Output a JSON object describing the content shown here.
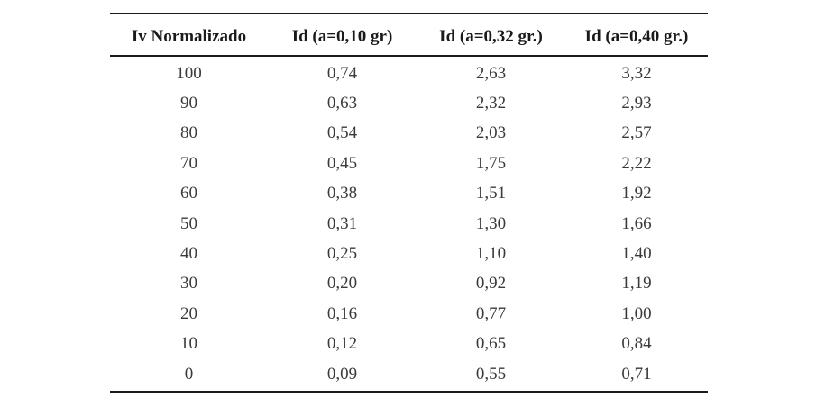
{
  "table": {
    "headers": [
      "Iv Normalizado",
      "Id (a=0,10 gr)",
      "Id (a=0,32 gr.)",
      "Id (a=0,40 gr.)"
    ],
    "rows": [
      [
        "100",
        "0,74",
        "2,63",
        "3,32"
      ],
      [
        "90",
        "0,63",
        "2,32",
        "2,93"
      ],
      [
        "80",
        "0,54",
        "2,03",
        "2,57"
      ],
      [
        "70",
        "0,45",
        "1,75",
        "2,22"
      ],
      [
        "60",
        "0,38",
        "1,51",
        "1,92"
      ],
      [
        "50",
        "0,31",
        "1,30",
        "1,66"
      ],
      [
        "40",
        "0,25",
        "1,10",
        "1,40"
      ],
      [
        "30",
        "0,20",
        "0,92",
        "1,19"
      ],
      [
        "20",
        "0,16",
        "0,77",
        "1,00"
      ],
      [
        "10",
        "0,12",
        "0,65",
        "0,84"
      ],
      [
        "0",
        "0,09",
        "0,55",
        "0,71"
      ]
    ]
  },
  "chart_data": {
    "type": "table",
    "columns": [
      "Iv Normalizado",
      "Id (a=0,10 gr)",
      "Id (a=0,32 gr.)",
      "Id (a=0,40 gr.)"
    ],
    "x": [
      100,
      90,
      80,
      70,
      60,
      50,
      40,
      30,
      20,
      10,
      0
    ],
    "series": [
      {
        "name": "Id (a=0,10 gr)",
        "values": [
          0.74,
          0.63,
          0.54,
          0.45,
          0.38,
          0.31,
          0.25,
          0.2,
          0.16,
          0.12,
          0.09
        ]
      },
      {
        "name": "Id (a=0,32 gr.)",
        "values": [
          2.63,
          2.32,
          2.03,
          1.75,
          1.51,
          1.3,
          1.1,
          0.92,
          0.77,
          0.65,
          0.55
        ]
      },
      {
        "name": "Id (a=0,40 gr.)",
        "values": [
          3.32,
          2.93,
          2.57,
          2.22,
          1.92,
          1.66,
          1.4,
          1.19,
          1.0,
          0.84,
          0.71
        ]
      }
    ]
  }
}
